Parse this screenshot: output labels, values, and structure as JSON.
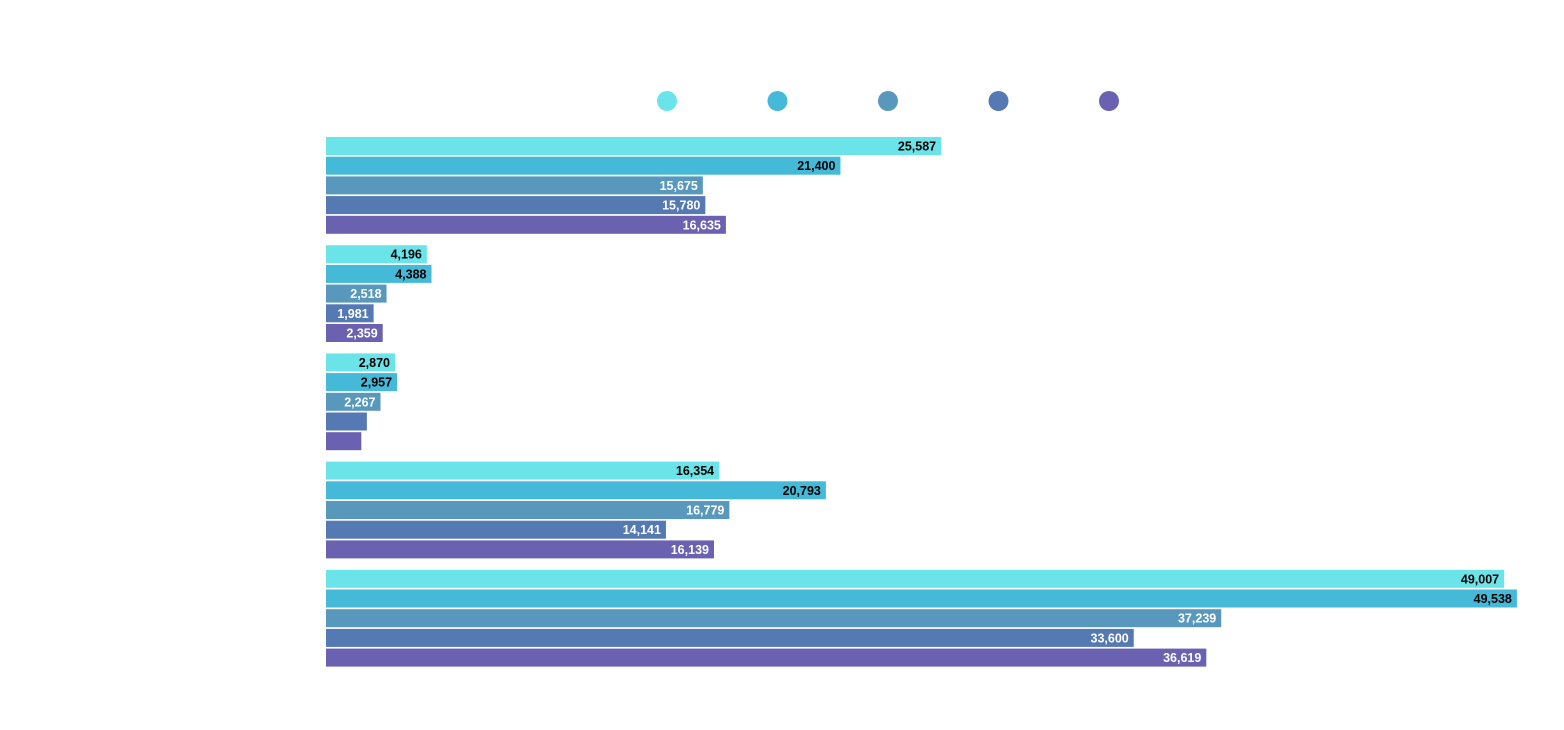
{
  "chart_data": {
    "type": "bar",
    "orientation": "horizontal",
    "grid": false,
    "legend_position": "top",
    "legend_labels_visible": false,
    "xlim": [
      0,
      50000
    ],
    "categories": [
      "",
      "",
      "",
      "",
      ""
    ],
    "series": [
      {
        "color": "#6ae4e8",
        "label_color": "#000000",
        "values": [
          25587,
          4196,
          2870,
          16354,
          49007
        ],
        "labels": [
          "25,587",
          "4,196",
          "2,870",
          "16,354",
          "49,007"
        ]
      },
      {
        "color": "#44b9d8",
        "label_color": "#000000",
        "values": [
          21400,
          4388,
          2957,
          20793,
          49538
        ],
        "labels": [
          "21,400",
          "4,388",
          "2,957",
          "20,793",
          "49,538"
        ]
      },
      {
        "color": "#5898bd",
        "label_color": "#ffffff",
        "values": [
          15675,
          2518,
          2267,
          16779,
          37239
        ],
        "labels": [
          "15,675",
          "2,518",
          "2,267",
          "16,779",
          "37,239"
        ]
      },
      {
        "color": "#5579b3",
        "label_color": "#ffffff",
        "values": [
          15780,
          1981,
          1700,
          14141,
          33600
        ],
        "labels": [
          "15,780",
          "1,981",
          "",
          "14,141",
          "33,600"
        ]
      },
      {
        "color": "#6a62b0",
        "label_color": "#ffffff",
        "values": [
          16635,
          2359,
          1470,
          16139,
          36619
        ],
        "labels": [
          "16,635",
          "2,359",
          "",
          "16,139",
          "36,619"
        ]
      }
    ]
  }
}
